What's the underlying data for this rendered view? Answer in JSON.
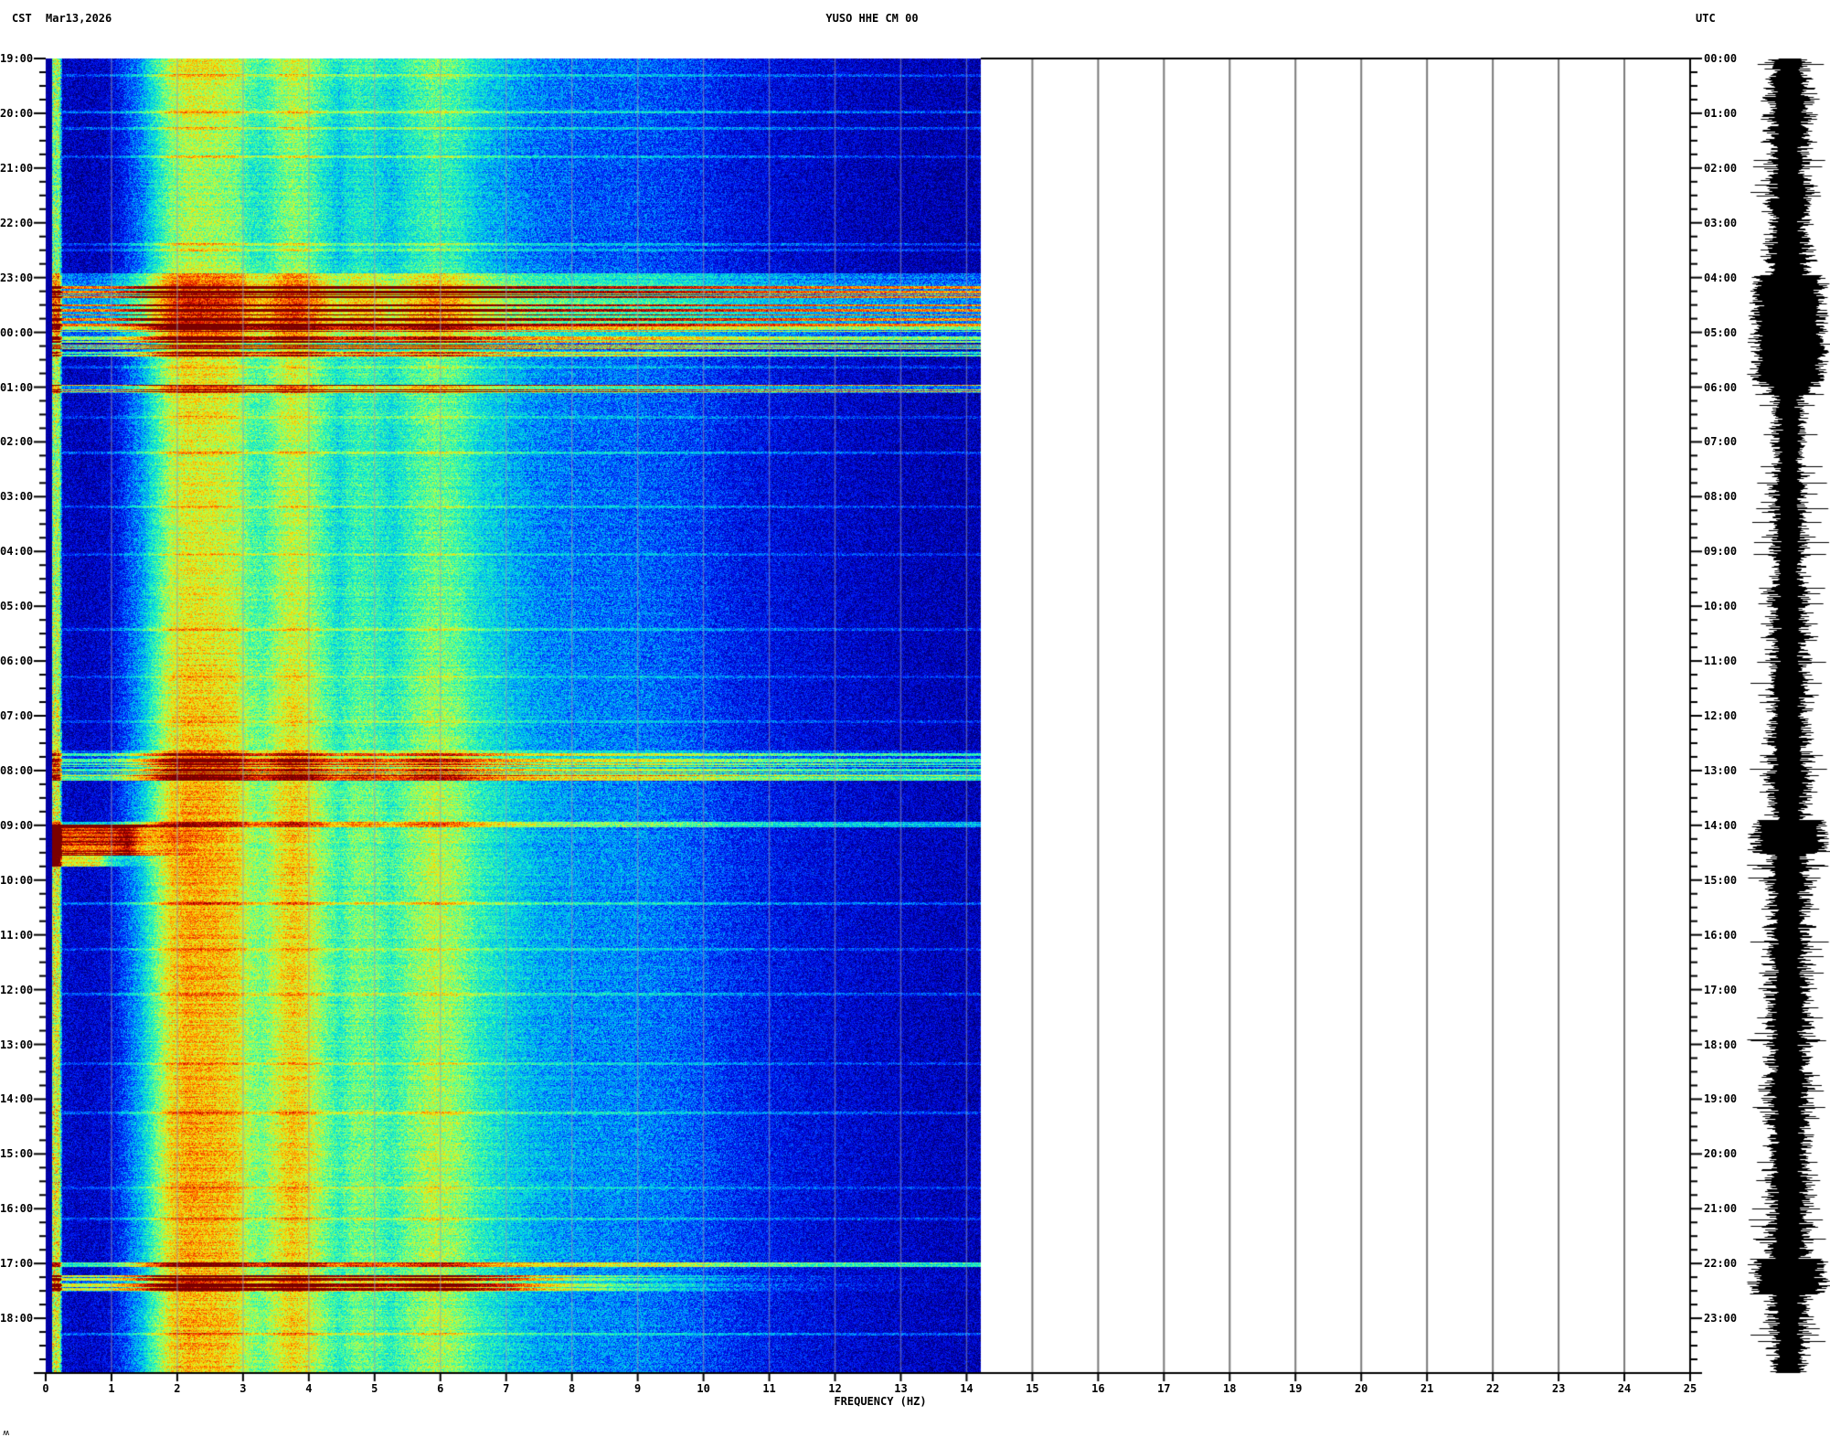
{
  "header": {
    "timezone_left": "CST",
    "date": "Mar13,2026",
    "station_title": "YUSO HHE CM 00",
    "timezone_right": "UTC"
  },
  "footer": {
    "xlabel": "FREQUENCY (HZ)",
    "corner_mark": "ʍ"
  },
  "chart_data": {
    "type": "heatmap",
    "subtype": "seismic-spectrogram-with-helicorder",
    "title": "YUSO HHE CM 00",
    "date": "Mar13,2026",
    "xlabel": "FREQUENCY (HZ)",
    "x_range": [
      0,
      25
    ],
    "x_ticks": [
      "0",
      "1",
      "2",
      "3",
      "4",
      "5",
      "6",
      "7",
      "8",
      "9",
      "10",
      "11",
      "12",
      "13",
      "14",
      "15",
      "16",
      "17",
      "18",
      "19",
      "20",
      "21",
      "22",
      "23",
      "24",
      "25"
    ],
    "data_freq_max": 14.22,
    "time_span_hours": 24,
    "minor_tick_minutes": 15,
    "grid_every_hz": 1,
    "left_axis": {
      "timezone": "CST",
      "labels": [
        "19:00",
        "20:00",
        "21:00",
        "22:00",
        "23:00",
        "00:00",
        "01:00",
        "02:00",
        "03:00",
        "04:00",
        "05:00",
        "06:00",
        "07:00",
        "08:00",
        "09:00",
        "10:00",
        "11:00",
        "12:00",
        "13:00",
        "14:00",
        "15:00",
        "16:00",
        "17:00",
        "18:00"
      ]
    },
    "right_axis": {
      "timezone": "UTC",
      "labels": [
        "00:00",
        "01:00",
        "02:00",
        "03:00",
        "04:00",
        "05:00",
        "06:00",
        "07:00",
        "08:00",
        "09:00",
        "10:00",
        "11:00",
        "12:00",
        "13:00",
        "14:00",
        "15:00",
        "16:00",
        "17:00",
        "18:00",
        "19:00",
        "20:00",
        "21:00",
        "22:00",
        "23:00"
      ]
    },
    "colors": {
      "grid_on_data": "rgba(150,158,180,0.55)",
      "grid_on_white": "#7a7a7a",
      "axis": "#000000",
      "waveform": "#000000",
      "colormap_jet_stops": [
        [
          0.0,
          "#00006e"
        ],
        [
          0.1,
          "#0000c8"
        ],
        [
          0.2,
          "#0028ff"
        ],
        [
          0.3,
          "#00a0ff"
        ],
        [
          0.4,
          "#00e8d8"
        ],
        [
          0.5,
          "#50ff9c"
        ],
        [
          0.6,
          "#c8ff3c"
        ],
        [
          0.7,
          "#ffd200"
        ],
        [
          0.8,
          "#ff6400"
        ],
        [
          0.9,
          "#e01000"
        ],
        [
          1.0,
          "#7a0000"
        ]
      ]
    },
    "background_profile": [
      [
        0.0,
        0.05
      ],
      [
        0.08,
        0.05
      ],
      [
        0.1,
        0.48
      ],
      [
        0.2,
        0.48
      ],
      [
        0.24,
        0.12
      ],
      [
        0.55,
        0.1
      ],
      [
        0.95,
        0.12
      ],
      [
        1.15,
        0.2
      ],
      [
        1.45,
        0.34
      ],
      [
        1.7,
        0.52
      ],
      [
        1.9,
        0.66
      ],
      [
        2.15,
        0.72
      ],
      [
        2.6,
        0.7
      ],
      [
        2.9,
        0.66
      ],
      [
        3.1,
        0.55
      ],
      [
        3.3,
        0.52
      ],
      [
        3.55,
        0.62
      ],
      [
        3.75,
        0.68
      ],
      [
        3.95,
        0.64
      ],
      [
        4.15,
        0.56
      ],
      [
        4.45,
        0.44
      ],
      [
        4.7,
        0.52
      ],
      [
        5.0,
        0.5
      ],
      [
        5.25,
        0.44
      ],
      [
        5.55,
        0.52
      ],
      [
        5.9,
        0.58
      ],
      [
        6.25,
        0.54
      ],
      [
        6.6,
        0.44
      ],
      [
        7.0,
        0.38
      ],
      [
        7.5,
        0.32
      ],
      [
        8.2,
        0.29
      ],
      [
        9.0,
        0.28
      ],
      [
        9.8,
        0.24
      ],
      [
        10.5,
        0.18
      ],
      [
        11.5,
        0.14
      ],
      [
        12.5,
        0.11
      ],
      [
        13.5,
        0.09
      ],
      [
        14.3,
        0.08
      ]
    ],
    "diurnal_gain": [
      [
        0,
        0.93
      ],
      [
        1,
        0.85
      ],
      [
        2.2,
        0.8
      ],
      [
        3.6,
        0.82
      ],
      [
        4.5,
        0.95
      ],
      [
        6,
        0.92
      ],
      [
        7.5,
        0.88
      ],
      [
        9.5,
        0.9
      ],
      [
        11,
        0.95
      ],
      [
        12.5,
        1.0
      ],
      [
        14,
        1.03
      ],
      [
        16,
        1.03
      ],
      [
        18,
        1.0
      ],
      [
        20,
        1.04
      ],
      [
        22,
        1.03
      ],
      [
        24,
        1.0
      ]
    ],
    "events": [
      {
        "utc_start": 3.92,
        "utc_end": 4.15,
        "f_max": 14.3,
        "boost": 0.18,
        "stripey": false,
        "falloff": 1.2
      },
      {
        "utc_start": 4.15,
        "utc_end": 4.88,
        "f_max": 14.3,
        "boost": 0.46,
        "stripey": true,
        "falloff": 1.2
      },
      {
        "utc_start": 4.88,
        "utc_end": 5.18,
        "f_max": 14.3,
        "boost": 0.3,
        "stripey": true,
        "falloff": 1.2
      },
      {
        "utc_start": 5.22,
        "utc_end": 5.3,
        "f_max": 14.3,
        "boost": 0.34,
        "stripey": true,
        "falloff": 1.2
      },
      {
        "utc_start": 5.34,
        "utc_end": 5.44,
        "f_max": 14.3,
        "boost": 0.26,
        "stripey": true,
        "falloff": 1.2
      },
      {
        "utc_start": 5.95,
        "utc_end": 6.1,
        "f_max": 14.3,
        "boost": 0.42,
        "stripey": true,
        "falloff": 1.2
      },
      {
        "utc_start": 12.62,
        "utc_end": 13.1,
        "f_max": 14.3,
        "boost": 0.24,
        "stripey": true,
        "falloff": 1.2
      },
      {
        "utc_start": 13.08,
        "utc_end": 13.17,
        "f_max": 14.3,
        "boost": 0.38,
        "stripey": false,
        "falloff": 1.2
      },
      {
        "utc_start": 13.93,
        "utc_end": 14.03,
        "f_max": 14.3,
        "boost": 0.26,
        "stripey": false,
        "falloff": 1.2
      },
      {
        "utc_start": 13.98,
        "utc_end": 14.55,
        "f_max": 1.25,
        "boost": 0.78,
        "stripey": false,
        "falloff": 3.0
      },
      {
        "utc_start": 14.55,
        "utc_end": 14.75,
        "f_max": 0.8,
        "boost": 0.5,
        "stripey": false,
        "falloff": 3.0
      },
      {
        "utc_start": 21.97,
        "utc_end": 22.06,
        "f_max": 14.3,
        "boost": 0.36,
        "stripey": false,
        "falloff": 1.2
      },
      {
        "utc_start": 22.2,
        "utc_end": 22.5,
        "f_max": 7.0,
        "boost": 0.34,
        "stripey": true,
        "falloff": 0.5
      }
    ],
    "streak_rows_utc": [
      {
        "t": 0.3,
        "add": 0.1
      },
      {
        "t": 0.97,
        "add": 0.14
      },
      {
        "t": 1.27,
        "add": 0.12
      },
      {
        "t": 1.78,
        "add": 0.1
      },
      {
        "t": 3.38,
        "add": 0.12
      },
      {
        "t": 3.49,
        "add": 0.1
      },
      {
        "t": 5.62,
        "add": 0.12
      },
      {
        "t": 6.55,
        "add": 0.1
      },
      {
        "t": 7.2,
        "add": 0.12
      },
      {
        "t": 8.18,
        "add": 0.1
      },
      {
        "t": 9.05,
        "add": 0.09
      },
      {
        "t": 10.42,
        "add": 0.12
      },
      {
        "t": 11.28,
        "add": 0.1
      },
      {
        "t": 12.1,
        "add": 0.1
      },
      {
        "t": 15.42,
        "add": 0.13
      },
      {
        "t": 16.25,
        "add": 0.1
      },
      {
        "t": 17.08,
        "add": 0.12
      },
      {
        "t": 18.35,
        "add": 0.1
      },
      {
        "t": 19.25,
        "add": 0.11
      },
      {
        "t": 20.62,
        "add": 0.1
      },
      {
        "t": 21.18,
        "add": 0.1
      },
      {
        "t": 23.28,
        "add": 0.12
      }
    ],
    "helicorder_envelope": [
      [
        0,
        0.5,
        24
      ],
      [
        0.5,
        1.1,
        30
      ],
      [
        1.1,
        2.2,
        26
      ],
      [
        2.2,
        3.6,
        27
      ],
      [
        3.6,
        3.95,
        30
      ],
      [
        3.95,
        5.9,
        38
      ],
      [
        5.9,
        6.15,
        32
      ],
      [
        6.15,
        7.6,
        19
      ],
      [
        7.6,
        9.5,
        21
      ],
      [
        9.5,
        11.5,
        23
      ],
      [
        11.5,
        12.3,
        25
      ],
      [
        12.3,
        13.3,
        29
      ],
      [
        13.3,
        13.9,
        25
      ],
      [
        13.9,
        14.5,
        38
      ],
      [
        14.5,
        15.2,
        28
      ],
      [
        15.2,
        17.5,
        26
      ],
      [
        17.5,
        19.5,
        27
      ],
      [
        19.5,
        21.9,
        26
      ],
      [
        21.9,
        22.55,
        38
      ],
      [
        22.55,
        23.3,
        26
      ],
      [
        23.3,
        24,
        24
      ]
    ]
  }
}
